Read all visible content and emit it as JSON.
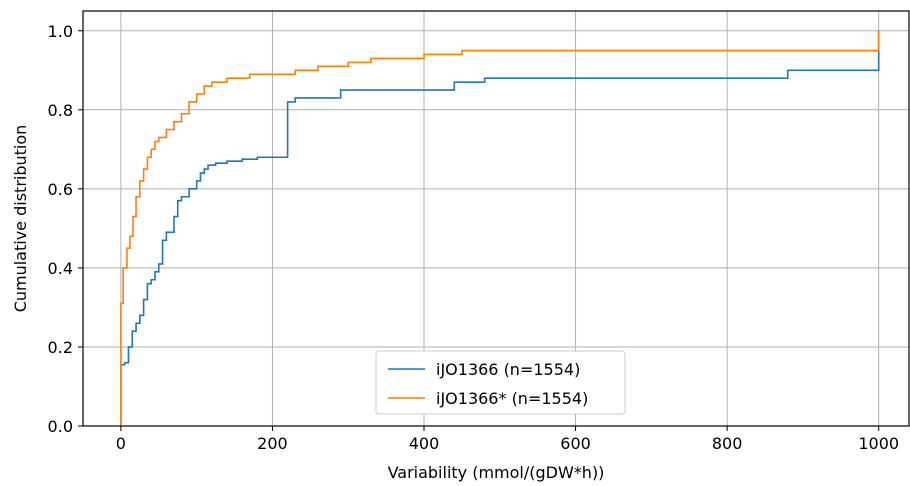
{
  "chart_data": {
    "type": "line",
    "xlabel": "Variability (mmol/(gDW*h))",
    "ylabel": "Cumulative distribution",
    "xlim": [
      -50,
      1040
    ],
    "ylim": [
      0,
      1.05
    ],
    "xticks": [
      0,
      200,
      400,
      600,
      800,
      1000
    ],
    "yticks": [
      0.0,
      0.2,
      0.4,
      0.6,
      0.8,
      1.0
    ],
    "xtick_labels": [
      "0",
      "200",
      "400",
      "600",
      "800",
      "1000"
    ],
    "ytick_labels": [
      "0.0",
      "0.2",
      "0.4",
      "0.6",
      "0.8",
      "1.0"
    ],
    "grid": true,
    "legend_position": "bottom-center",
    "series": [
      {
        "name": "iJO1366 (n=1554)",
        "color": "#1f77b4",
        "step": true,
        "points": [
          [
            0,
            0
          ],
          [
            0,
            0.155
          ],
          [
            5,
            0.16
          ],
          [
            10,
            0.2
          ],
          [
            15,
            0.24
          ],
          [
            20,
            0.26
          ],
          [
            25,
            0.28
          ],
          [
            30,
            0.32
          ],
          [
            35,
            0.36
          ],
          [
            40,
            0.37
          ],
          [
            45,
            0.39
          ],
          [
            50,
            0.41
          ],
          [
            55,
            0.47
          ],
          [
            60,
            0.49
          ],
          [
            70,
            0.53
          ],
          [
            75,
            0.57
          ],
          [
            80,
            0.58
          ],
          [
            90,
            0.6
          ],
          [
            100,
            0.62
          ],
          [
            105,
            0.64
          ],
          [
            110,
            0.65
          ],
          [
            115,
            0.66
          ],
          [
            125,
            0.665
          ],
          [
            140,
            0.67
          ],
          [
            160,
            0.675
          ],
          [
            180,
            0.68
          ],
          [
            215,
            0.68
          ],
          [
            220,
            0.82
          ],
          [
            230,
            0.83
          ],
          [
            290,
            0.85
          ],
          [
            440,
            0.87
          ],
          [
            480,
            0.88
          ],
          [
            880,
            0.9
          ],
          [
            1000,
            0.9
          ],
          [
            1000,
            1.0
          ]
        ]
      },
      {
        "name": "iJO1366* (n=1554)",
        "color": "#ff7f0e",
        "step": true,
        "points": [
          [
            0,
            0
          ],
          [
            0,
            0.31
          ],
          [
            3,
            0.4
          ],
          [
            8,
            0.45
          ],
          [
            12,
            0.48
          ],
          [
            16,
            0.53
          ],
          [
            20,
            0.58
          ],
          [
            25,
            0.62
          ],
          [
            30,
            0.65
          ],
          [
            35,
            0.68
          ],
          [
            40,
            0.7
          ],
          [
            45,
            0.72
          ],
          [
            50,
            0.73
          ],
          [
            60,
            0.75
          ],
          [
            70,
            0.77
          ],
          [
            80,
            0.79
          ],
          [
            90,
            0.82
          ],
          [
            100,
            0.84
          ],
          [
            110,
            0.86
          ],
          [
            120,
            0.87
          ],
          [
            140,
            0.88
          ],
          [
            170,
            0.89
          ],
          [
            210,
            0.89
          ],
          [
            230,
            0.9
          ],
          [
            260,
            0.91
          ],
          [
            300,
            0.92
          ],
          [
            330,
            0.93
          ],
          [
            400,
            0.94
          ],
          [
            450,
            0.95
          ],
          [
            900,
            0.95
          ],
          [
            920,
            0.95
          ],
          [
            1000,
            0.95
          ],
          [
            1000,
            1.0
          ]
        ]
      }
    ]
  }
}
